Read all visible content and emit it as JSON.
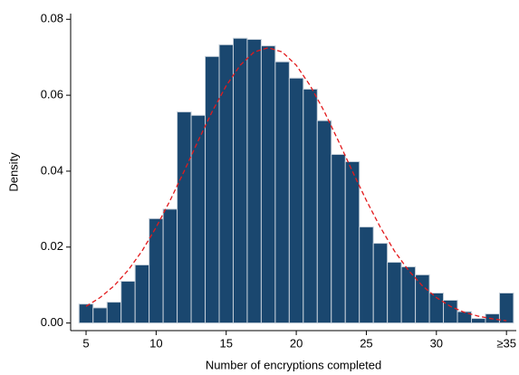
{
  "chart_data": {
    "type": "histogram",
    "x_label": "Number of encryptions completed",
    "y_label": "Density",
    "bins": [
      4.5,
      5.5,
      6.5,
      7.5,
      8.5,
      9.5,
      10.5,
      11.5,
      12.5,
      13.5,
      14.5,
      15.5,
      16.5,
      17.5,
      18.5,
      19.5,
      20.5,
      21.5,
      22.5,
      23.5,
      24.5,
      25.5,
      26.5,
      27.5,
      28.5,
      29.5,
      30.5,
      31.5,
      32.5,
      33.5,
      34.5,
      35.5
    ],
    "values": [
      0.005,
      0.004,
      0.0055,
      0.011,
      0.0153,
      0.0275,
      0.03,
      0.0556,
      0.0547,
      0.0702,
      0.0733,
      0.075,
      0.0747,
      0.073,
      0.0688,
      0.0645,
      0.0616,
      0.0533,
      0.0444,
      0.0425,
      0.0253,
      0.021,
      0.016,
      0.0148,
      0.0127,
      0.0079,
      0.006,
      0.003,
      0.0012,
      0.0024,
      0.0079
    ],
    "color": "#1a476f",
    "edge_color": "#c6d0da",
    "curve": {
      "x": [
        5,
        6,
        7,
        8,
        9,
        10,
        11,
        12,
        13,
        14,
        15,
        16,
        17,
        18,
        19,
        20,
        21,
        22,
        23,
        24,
        25,
        26,
        27,
        28,
        29,
        30,
        31,
        32,
        33,
        34,
        35
      ],
      "values": [
        0.0044,
        0.0067,
        0.0098,
        0.0139,
        0.019,
        0.0252,
        0.0323,
        0.04,
        0.048,
        0.0557,
        0.0625,
        0.0679,
        0.0714,
        0.0725,
        0.0714,
        0.0679,
        0.0625,
        0.0557,
        0.048,
        0.04,
        0.0323,
        0.0252,
        0.019,
        0.0139,
        0.0098,
        0.0067,
        0.0044,
        0.0028,
        0.0018,
        0.0011,
        0.0006
      ],
      "color": "#e31a1c"
    },
    "xlim": [
      3.9,
      35.7
    ],
    "ylim": [
      -0.002,
      0.0815
    ],
    "xticks": [
      5,
      10,
      15,
      20,
      25,
      30,
      {
        "value": 35,
        "label": "≥35"
      }
    ],
    "yticks": [
      {
        "value": 0,
        "label": "0.00"
      },
      0.02,
      0.04,
      0.06,
      0.08
    ]
  }
}
